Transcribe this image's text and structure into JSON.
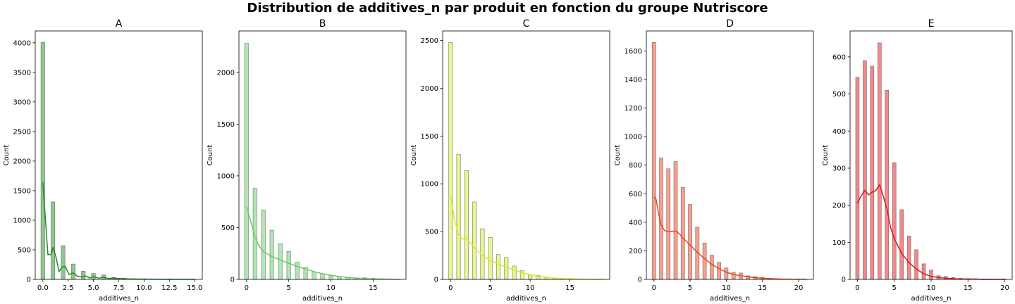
{
  "suptitle": "Distribution de additives_n par produit en fonction du groupe Nutriscore",
  "chart_data": [
    {
      "type": "bar",
      "title": "A",
      "xlabel": "additives_n",
      "ylabel": "Count",
      "color": "#228b22",
      "xlim": [
        -0.75,
        15.75
      ],
      "ylim": [
        0,
        4200
      ],
      "xticks": [
        0,
        2.5,
        5,
        7.5,
        10,
        12.5,
        15
      ],
      "xtick_labels": [
        "0.0",
        "2.5",
        "5.0",
        "7.5",
        "10.0",
        "12.5",
        "15.0"
      ],
      "yticks": [
        0,
        500,
        1000,
        1500,
        2000,
        2500,
        3000,
        3500,
        4000
      ],
      "bin_width": 0.375,
      "x": [
        0,
        1,
        2,
        3,
        4,
        5,
        6,
        7,
        8,
        9,
        10,
        11,
        12,
        13,
        14,
        15
      ],
      "values": [
        4010,
        1310,
        570,
        260,
        140,
        100,
        75,
        35,
        20,
        10,
        6,
        3,
        2,
        1,
        1,
        1
      ],
      "kde_x": [
        0,
        0.2,
        0.5,
        0.8,
        1,
        1.3,
        1.6,
        1.9,
        2.2,
        2.6,
        3,
        3.4,
        3.8,
        4.2,
        4.6,
        5,
        5.5,
        6,
        6.5,
        7,
        8,
        9,
        10,
        11,
        12,
        13,
        14,
        15
      ],
      "kde_y": [
        1640,
        1150,
        420,
        420,
        540,
        380,
        130,
        210,
        220,
        80,
        110,
        55,
        40,
        60,
        25,
        45,
        20,
        35,
        15,
        20,
        10,
        6,
        4,
        3,
        2,
        1,
        1,
        1
      ]
    },
    {
      "type": "bar",
      "title": "B",
      "xlabel": "additives_n",
      "ylabel": "Count",
      "color": "#66cd66",
      "xlim": [
        -0.9,
        18.9
      ],
      "ylim": [
        0,
        2400
      ],
      "xticks": [
        0,
        5,
        10,
        15
      ],
      "xtick_labels": [
        "0",
        "5",
        "10",
        "15"
      ],
      "yticks": [
        0,
        500,
        1000,
        1500,
        2000
      ],
      "bin_width": 0.45,
      "x": [
        0,
        1,
        2,
        3,
        4,
        5,
        6,
        7,
        8,
        9,
        10,
        11,
        12,
        13,
        14,
        15,
        16,
        17,
        18
      ],
      "values": [
        2280,
        880,
        670,
        475,
        345,
        270,
        165,
        115,
        70,
        55,
        35,
        25,
        20,
        15,
        15,
        10,
        5,
        3,
        2
      ],
      "kde_x": [
        0,
        0.5,
        1,
        1.5,
        2,
        3,
        4,
        5,
        6,
        7,
        8,
        9,
        10,
        11,
        12,
        13,
        14,
        15,
        16,
        17,
        18
      ],
      "kde_y": [
        700,
        560,
        410,
        320,
        270,
        220,
        190,
        155,
        125,
        100,
        75,
        55,
        40,
        28,
        18,
        12,
        8,
        5,
        3,
        2,
        1
      ]
    },
    {
      "type": "bar",
      "title": "C",
      "xlabel": "additives_n",
      "ylabel": "Count",
      "color": "#d4ec1e",
      "xlim": [
        -1,
        20
      ],
      "ylim": [
        0,
        2600
      ],
      "xticks": [
        0,
        5,
        10,
        15
      ],
      "xtick_labels": [
        "0",
        "5",
        "10",
        "15"
      ],
      "yticks": [
        0,
        500,
        1000,
        1500,
        2000,
        2500
      ],
      "bin_width": 0.475,
      "x": [
        0,
        1,
        2,
        3,
        4,
        5,
        6,
        7,
        8,
        9,
        10,
        11,
        12,
        13,
        14,
        15,
        16,
        17,
        18,
        19
      ],
      "values": [
        2480,
        1310,
        1140,
        810,
        530,
        440,
        260,
        230,
        140,
        90,
        45,
        40,
        25,
        15,
        10,
        8,
        5,
        3,
        2,
        1
      ],
      "kde_x": [
        0,
        0.5,
        1,
        1.5,
        2,
        2.5,
        3,
        4,
        5,
        6,
        7,
        8,
        9,
        10,
        11,
        12,
        13,
        14,
        15,
        16,
        17,
        18,
        19
      ],
      "kde_y": [
        880,
        620,
        470,
        420,
        430,
        380,
        330,
        250,
        200,
        160,
        130,
        100,
        70,
        48,
        32,
        20,
        12,
        8,
        5,
        3,
        2,
        1,
        1
      ]
    },
    {
      "type": "bar",
      "title": "D",
      "xlabel": "additives_n",
      "ylabel": "Count",
      "color": "#f0441e",
      "xlim": [
        -1.05,
        22.05
      ],
      "ylim": [
        0,
        1740
      ],
      "xticks": [
        0,
        5,
        10,
        15,
        20
      ],
      "xtick_labels": [
        "0",
        "5",
        "10",
        "15",
        "20"
      ],
      "yticks": [
        0,
        200,
        400,
        600,
        800,
        1000,
        1200,
        1400,
        1600
      ],
      "bin_width": 0.5,
      "x": [
        0,
        1,
        2,
        3,
        4,
        5,
        6,
        7,
        8,
        9,
        10,
        11,
        12,
        13,
        14,
        15,
        16,
        17,
        18,
        19,
        20,
        21
      ],
      "values": [
        1660,
        850,
        775,
        825,
        645,
        525,
        365,
        255,
        170,
        120,
        80,
        50,
        45,
        25,
        20,
        15,
        8,
        5,
        3,
        2,
        1,
        1
      ],
      "kde_x": [
        0,
        0.3,
        0.6,
        1,
        1.5,
        2,
        2.5,
        3,
        3.5,
        4,
        5,
        6,
        7,
        8,
        9,
        10,
        11,
        12,
        13,
        14,
        15,
        16,
        17,
        18,
        19,
        20,
        21
      ],
      "kde_y": [
        580,
        560,
        470,
        380,
        340,
        335,
        335,
        340,
        320,
        290,
        240,
        190,
        145,
        105,
        75,
        50,
        35,
        25,
        18,
        12,
        8,
        5,
        3,
        2,
        1,
        1,
        1
      ]
    },
    {
      "type": "bar",
      "title": "E",
      "xlabel": "additives_n",
      "ylabel": "Count",
      "color": "#e3141a",
      "xlim": [
        -1,
        21
      ],
      "ylim": [
        0,
        670
      ],
      "xticks": [
        0,
        5,
        10,
        15,
        20
      ],
      "xtick_labels": [
        "0",
        "5",
        "10",
        "15",
        "20"
      ],
      "yticks": [
        0,
        100,
        200,
        300,
        400,
        500,
        600
      ],
      "bin_width": 0.475,
      "x": [
        0,
        1,
        2,
        3,
        4,
        5,
        6,
        7,
        8,
        9,
        10,
        11,
        12,
        13,
        14,
        15,
        16,
        17,
        18,
        19,
        20
      ],
      "values": [
        545,
        590,
        575,
        638,
        510,
        315,
        188,
        117,
        80,
        42,
        25,
        10,
        8,
        5,
        3,
        2,
        1,
        1,
        0,
        0,
        1
      ],
      "kde_x": [
        0,
        0.5,
        1,
        1.5,
        2,
        2.5,
        3,
        3.5,
        4,
        4.5,
        5,
        6,
        7,
        8,
        9,
        10,
        11,
        12,
        13,
        14,
        15,
        16,
        17,
        18,
        19,
        20
      ],
      "kde_y": [
        205,
        225,
        240,
        228,
        235,
        240,
        255,
        225,
        190,
        140,
        110,
        70,
        45,
        28,
        15,
        8,
        5,
        3,
        2,
        1,
        1,
        1,
        0,
        0,
        0,
        0
      ]
    }
  ]
}
